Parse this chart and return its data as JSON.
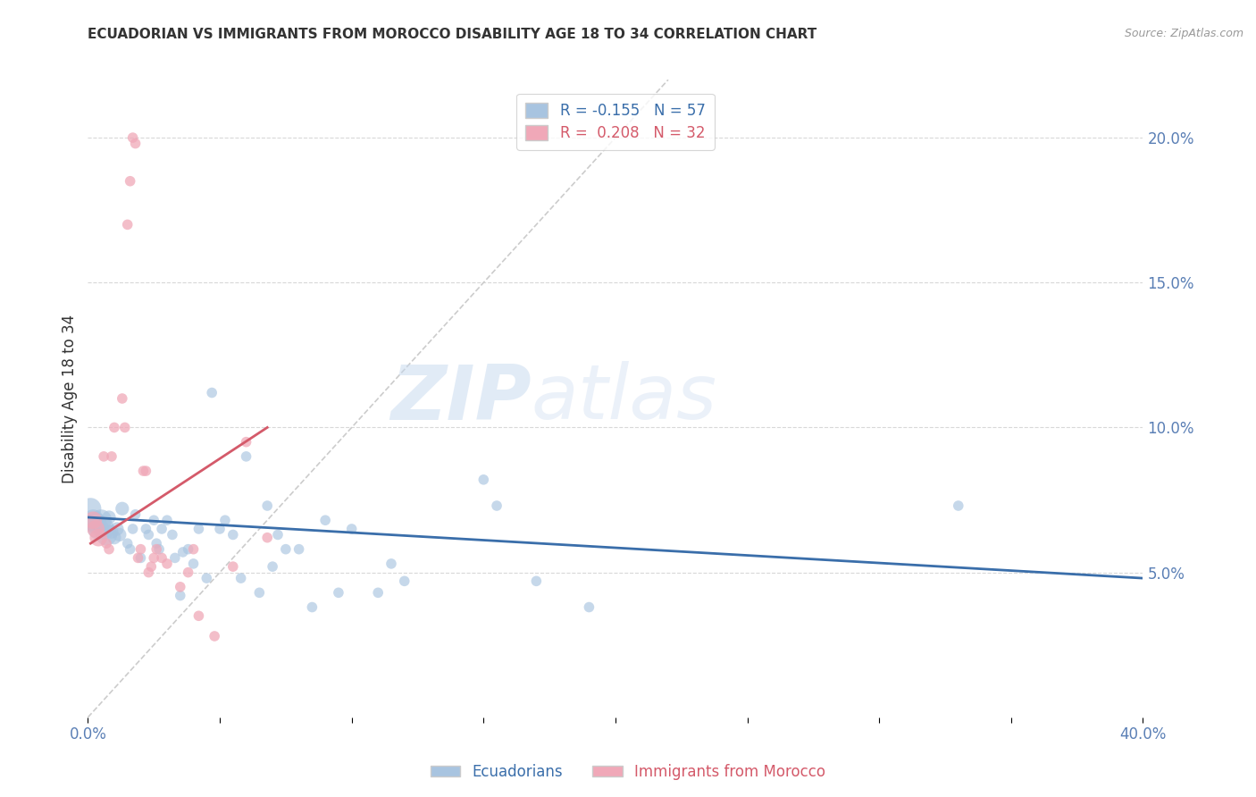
{
  "title": "ECUADORIAN VS IMMIGRANTS FROM MOROCCO DISABILITY AGE 18 TO 34 CORRELATION CHART",
  "source": "Source: ZipAtlas.com",
  "ylabel": "Disability Age 18 to 34",
  "ytick_labels": [
    "5.0%",
    "10.0%",
    "15.0%",
    "20.0%"
  ],
  "ytick_values": [
    0.05,
    0.1,
    0.15,
    0.2
  ],
  "xlim": [
    0.0,
    0.4
  ],
  "ylim": [
    0.0,
    0.22
  ],
  "legend1_label": "Ecuadorians",
  "legend2_label": "Immigrants from Morocco",
  "R_blue": -0.155,
  "N_blue": 57,
  "R_pink": 0.208,
  "N_pink": 32,
  "blue_color": "#a8c4e0",
  "blue_line_color": "#3a6eaa",
  "pink_color": "#f0a8b8",
  "pink_line_color": "#d45a6a",
  "watermark_ZIP": "ZIP",
  "watermark_atlas": "atlas",
  "blue_points": [
    [
      0.001,
      0.072
    ],
    [
      0.002,
      0.068
    ],
    [
      0.003,
      0.067
    ],
    [
      0.004,
      0.065
    ],
    [
      0.005,
      0.068
    ],
    [
      0.006,
      0.065
    ],
    [
      0.007,
      0.063
    ],
    [
      0.008,
      0.069
    ],
    [
      0.009,
      0.064
    ],
    [
      0.01,
      0.062
    ],
    [
      0.011,
      0.065
    ],
    [
      0.012,
      0.063
    ],
    [
      0.013,
      0.072
    ],
    [
      0.015,
      0.06
    ],
    [
      0.016,
      0.058
    ],
    [
      0.017,
      0.065
    ],
    [
      0.018,
      0.07
    ],
    [
      0.02,
      0.055
    ],
    [
      0.022,
      0.065
    ],
    [
      0.023,
      0.063
    ],
    [
      0.025,
      0.068
    ],
    [
      0.026,
      0.06
    ],
    [
      0.027,
      0.058
    ],
    [
      0.028,
      0.065
    ],
    [
      0.03,
      0.068
    ],
    [
      0.032,
      0.063
    ],
    [
      0.033,
      0.055
    ],
    [
      0.035,
      0.042
    ],
    [
      0.036,
      0.057
    ],
    [
      0.038,
      0.058
    ],
    [
      0.04,
      0.053
    ],
    [
      0.042,
      0.065
    ],
    [
      0.045,
      0.048
    ],
    [
      0.047,
      0.112
    ],
    [
      0.05,
      0.065
    ],
    [
      0.052,
      0.068
    ],
    [
      0.055,
      0.063
    ],
    [
      0.058,
      0.048
    ],
    [
      0.06,
      0.09
    ],
    [
      0.065,
      0.043
    ],
    [
      0.068,
      0.073
    ],
    [
      0.07,
      0.052
    ],
    [
      0.072,
      0.063
    ],
    [
      0.075,
      0.058
    ],
    [
      0.08,
      0.058
    ],
    [
      0.085,
      0.038
    ],
    [
      0.09,
      0.068
    ],
    [
      0.095,
      0.043
    ],
    [
      0.1,
      0.065
    ],
    [
      0.11,
      0.043
    ],
    [
      0.115,
      0.053
    ],
    [
      0.12,
      0.047
    ],
    [
      0.15,
      0.082
    ],
    [
      0.155,
      0.073
    ],
    [
      0.17,
      0.047
    ],
    [
      0.19,
      0.038
    ],
    [
      0.33,
      0.073
    ]
  ],
  "pink_points": [
    [
      0.002,
      0.068
    ],
    [
      0.003,
      0.065
    ],
    [
      0.004,
      0.062
    ],
    [
      0.006,
      0.09
    ],
    [
      0.007,
      0.06
    ],
    [
      0.008,
      0.058
    ],
    [
      0.009,
      0.09
    ],
    [
      0.01,
      0.1
    ],
    [
      0.013,
      0.11
    ],
    [
      0.014,
      0.1
    ],
    [
      0.015,
      0.17
    ],
    [
      0.016,
      0.185
    ],
    [
      0.017,
      0.2
    ],
    [
      0.018,
      0.198
    ],
    [
      0.019,
      0.055
    ],
    [
      0.02,
      0.058
    ],
    [
      0.021,
      0.085
    ],
    [
      0.022,
      0.085
    ],
    [
      0.023,
      0.05
    ],
    [
      0.024,
      0.052
    ],
    [
      0.025,
      0.055
    ],
    [
      0.026,
      0.058
    ],
    [
      0.028,
      0.055
    ],
    [
      0.03,
      0.053
    ],
    [
      0.035,
      0.045
    ],
    [
      0.038,
      0.05
    ],
    [
      0.04,
      0.058
    ],
    [
      0.042,
      0.035
    ],
    [
      0.048,
      0.028
    ],
    [
      0.055,
      0.052
    ],
    [
      0.06,
      0.095
    ],
    [
      0.068,
      0.062
    ]
  ],
  "blue_line_x": [
    0.0,
    0.4
  ],
  "blue_line_y_start": 0.069,
  "blue_line_y_end": 0.048,
  "pink_line_x_start": 0.001,
  "pink_line_x_end": 0.068,
  "pink_line_y_start": 0.06,
  "pink_line_y_end": 0.1,
  "ref_line_x": [
    0.0,
    0.22
  ],
  "ref_line_y": [
    0.0,
    0.22
  ],
  "background_color": "#ffffff",
  "grid_color": "#d8d8d8",
  "title_color": "#333333",
  "tick_color": "#5a7fb5"
}
